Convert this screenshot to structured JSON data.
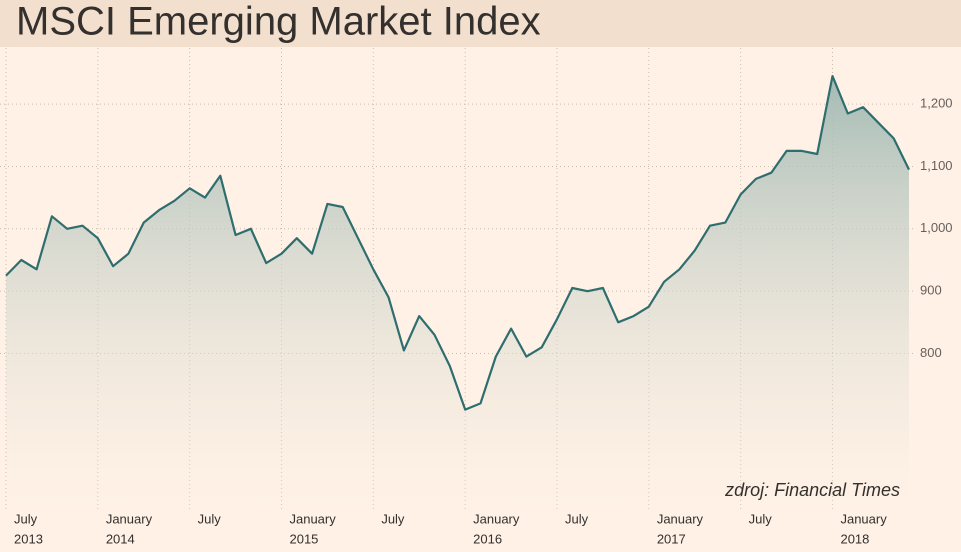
{
  "chart_data": {
    "type": "area",
    "title": "MSCI Emerging Market Index",
    "annotation": "zdroj: Financial Times",
    "x": [
      "2013-07",
      "2013-08",
      "2013-09",
      "2013-10",
      "2013-11",
      "2013-12",
      "2014-01",
      "2014-02",
      "2014-03",
      "2014-04",
      "2014-05",
      "2014-06",
      "2014-07",
      "2014-08",
      "2014-09",
      "2014-10",
      "2014-11",
      "2014-12",
      "2015-01",
      "2015-02",
      "2015-03",
      "2015-04",
      "2015-05",
      "2015-06",
      "2015-07",
      "2015-08",
      "2015-09",
      "2015-10",
      "2015-11",
      "2015-12",
      "2016-01",
      "2016-02",
      "2016-03",
      "2016-04",
      "2016-05",
      "2016-06",
      "2016-07",
      "2016-08",
      "2016-09",
      "2016-10",
      "2016-11",
      "2016-12",
      "2017-01",
      "2017-02",
      "2017-03",
      "2017-04",
      "2017-05",
      "2017-06",
      "2017-07",
      "2017-08",
      "2017-09",
      "2017-10",
      "2017-11",
      "2017-12",
      "2018-01",
      "2018-02",
      "2018-03",
      "2018-04",
      "2018-05",
      "2018-06"
    ],
    "series": [
      {
        "name": "MSCI Emerging Market Index",
        "color": "#2e6e6e",
        "values": [
          925,
          950,
          935,
          1020,
          1000,
          1005,
          985,
          940,
          960,
          1010,
          1030,
          1045,
          1065,
          1050,
          1085,
          990,
          1000,
          945,
          960,
          985,
          960,
          1040,
          1035,
          985,
          935,
          890,
          805,
          860,
          830,
          780,
          710,
          720,
          795,
          840,
          795,
          810,
          855,
          905,
          900,
          905,
          850,
          860,
          875,
          915,
          935,
          965,
          1005,
          1010,
          1055,
          1080,
          1090,
          1125,
          1125,
          1120,
          1245,
          1185,
          1195,
          1170,
          1145,
          1095
        ]
      }
    ],
    "xlim": [
      "2013-07",
      "2018-06"
    ],
    "xticks": [
      {
        "value": "2013-07",
        "label": "July",
        "year": "2013"
      },
      {
        "value": "2014-01",
        "label": "January",
        "year": "2014"
      },
      {
        "value": "2014-07",
        "label": "July"
      },
      {
        "value": "2015-01",
        "label": "January",
        "year": "2015"
      },
      {
        "value": "2015-07",
        "label": "July"
      },
      {
        "value": "2016-01",
        "label": "January",
        "year": "2016"
      },
      {
        "value": "2016-07",
        "label": "July"
      },
      {
        "value": "2017-01",
        "label": "January",
        "year": "2017"
      },
      {
        "value": "2017-07",
        "label": "July"
      },
      {
        "value": "2018-01",
        "label": "January",
        "year": "2018"
      }
    ],
    "ylim": [
      549,
      1290
    ],
    "yticks": [
      800,
      900,
      {
        "value": 1000,
        "label": "1,000"
      },
      {
        "value": 1100,
        "label": "1,100"
      },
      {
        "value": 1200,
        "label": "1,200"
      }
    ],
    "grid": true
  }
}
